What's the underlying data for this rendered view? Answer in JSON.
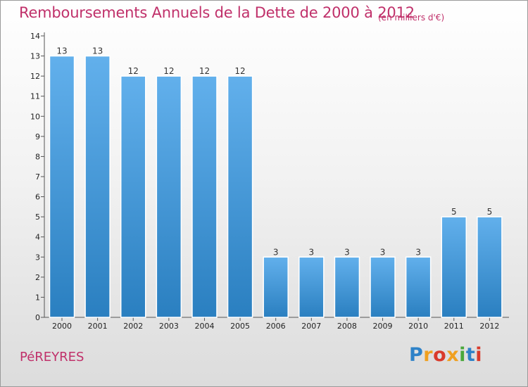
{
  "header": {
    "title": "Remboursements Annuels de la Dette de 2000 à 2012",
    "unit": "(en milliers d'€)"
  },
  "footer": {
    "commune": "PéREYRES",
    "logo_text": "Proxiti",
    "logo_colors": [
      "#2e82c8",
      "#f0a020",
      "#d93a2b",
      "#f0a020",
      "#4aa83c",
      "#2e82c8",
      "#d93a2b"
    ]
  },
  "chart_data": {
    "type": "bar",
    "categories": [
      "2000",
      "2001",
      "2002",
      "2003",
      "2004",
      "2005",
      "2006",
      "2007",
      "2008",
      "2009",
      "2010",
      "2011",
      "2012"
    ],
    "values": [
      13,
      13,
      12,
      12,
      12,
      12,
      3,
      3,
      3,
      3,
      3,
      5,
      5
    ],
    "value_labels": [
      "13",
      "13",
      "12",
      "12",
      "12",
      "12",
      "3",
      "3",
      "3",
      "3",
      "3",
      "5",
      "5"
    ],
    "yticks": [
      "0",
      "1",
      "2",
      "3",
      "4",
      "5",
      "6",
      "7",
      "8",
      "9",
      "10",
      "11",
      "12",
      "13",
      "14"
    ],
    "ylim": [
      0,
      14
    ],
    "title": "Remboursements Annuels de la Dette de 2000 à 2012",
    "xlabel": "",
    "ylabel": "",
    "grid": false,
    "bar_color_top": "#62b0ec",
    "bar_color_bottom": "#2a7fc0"
  }
}
